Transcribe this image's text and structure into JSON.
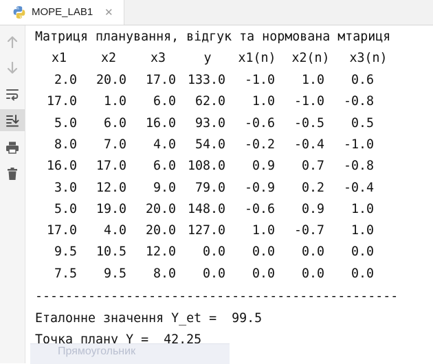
{
  "tab": {
    "title": "MOPE_LAB1",
    "icon": "python-icon",
    "close": "✕"
  },
  "toolbar": {
    "tools": [
      "arrow-up-icon",
      "arrow-down-icon",
      "soft-wrap-icon",
      "scroll-to-end-icon",
      "print-icon",
      "trash-icon"
    ]
  },
  "console": {
    "title": "Матриця планування, відгук та нормована мтариця",
    "headers": [
      "x1",
      "x2",
      "x3",
      "y",
      "x1(n)",
      "x2(n)",
      "x3(n)"
    ],
    "rows": [
      [
        "2.0",
        "20.0",
        "17.0",
        "133.0",
        "-1.0",
        "1.0",
        "0.6"
      ],
      [
        "17.0",
        "1.0",
        "6.0",
        "62.0",
        "1.0",
        "-1.0",
        "-0.8"
      ],
      [
        "5.0",
        "6.0",
        "16.0",
        "93.0",
        "-0.6",
        "-0.5",
        "0.5"
      ],
      [
        "8.0",
        "7.0",
        "4.0",
        "54.0",
        "-0.2",
        "-0.4",
        "-1.0"
      ],
      [
        "16.0",
        "17.0",
        "6.0",
        "108.0",
        "0.9",
        "0.7",
        "-0.8"
      ],
      [
        "3.0",
        "12.0",
        "9.0",
        "79.0",
        "-0.9",
        "0.2",
        "-0.4"
      ],
      [
        "5.0",
        "19.0",
        "20.0",
        "148.0",
        "-0.6",
        "0.9",
        "1.0"
      ],
      [
        "17.0",
        "4.0",
        "20.0",
        "127.0",
        "1.0",
        "-0.7",
        "1.0"
      ],
      [
        "9.5",
        "10.5",
        "12.0",
        "0.0",
        "0.0",
        "0.0",
        "0.0"
      ],
      [
        "7.5",
        "9.5",
        "8.0",
        "0.0",
        "0.0",
        "0.0",
        "0.0"
      ]
    ],
    "separator": "------------------------------------------------",
    "etalon": "Еталонне значення Y_et =  99.5",
    "plan_point": "Точка плану Y =  42.25"
  },
  "popup_hint": "Прямоугольник"
}
